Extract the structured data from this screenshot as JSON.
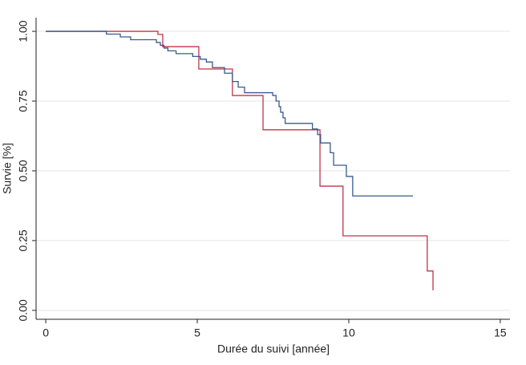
{
  "chart_data": {
    "type": "step",
    "x_label": "Durée du suivi [année]",
    "y_label": "Survie [%]",
    "series": [
      {
        "color": "#c0344a",
        "x": [
          0,
          3.7,
          3.86,
          5.05,
          6.16,
          7.17,
          9.05,
          9.81,
          12.59,
          12.78
        ],
        "values": [
          1.0,
          0.989,
          0.945,
          0.865,
          0.77,
          0.647,
          0.445,
          0.267,
          0.141,
          0.072
        ]
      },
      {
        "color": "#3a5a8c",
        "x": [
          0,
          2.0,
          2.46,
          2.8,
          3.65,
          3.78,
          3.9,
          4.03,
          4.3,
          4.85,
          5.1,
          5.3,
          5.5,
          5.9,
          6.16,
          6.35,
          6.56,
          7.49,
          7.6,
          7.7,
          7.75,
          7.83,
          7.9,
          8.8,
          8.97,
          9.07,
          9.39,
          9.5,
          9.92,
          10.13,
          12.12
        ],
        "values": [
          1.0,
          0.99,
          0.98,
          0.97,
          0.96,
          0.95,
          0.94,
          0.93,
          0.92,
          0.91,
          0.9,
          0.89,
          0.87,
          0.85,
          0.82,
          0.8,
          0.78,
          0.77,
          0.75,
          0.73,
          0.71,
          0.69,
          0.67,
          0.65,
          0.63,
          0.6,
          0.565,
          0.52,
          0.48,
          0.41,
          0.41
        ]
      }
    ],
    "xlim": [
      -0.32,
      15.32
    ],
    "xticks": [
      0,
      5,
      10,
      15
    ],
    "ylim": [
      -0.032,
      1.049
    ],
    "yticks": [
      {
        "value": 0,
        "label": "0.00"
      },
      {
        "value": 0.25,
        "label": "0.25"
      },
      {
        "value": 0.5,
        "label": "0.50"
      },
      {
        "value": 0.75,
        "label": "0.75"
      },
      {
        "value": 1,
        "label": "1.00"
      }
    ],
    "grid": true
  }
}
